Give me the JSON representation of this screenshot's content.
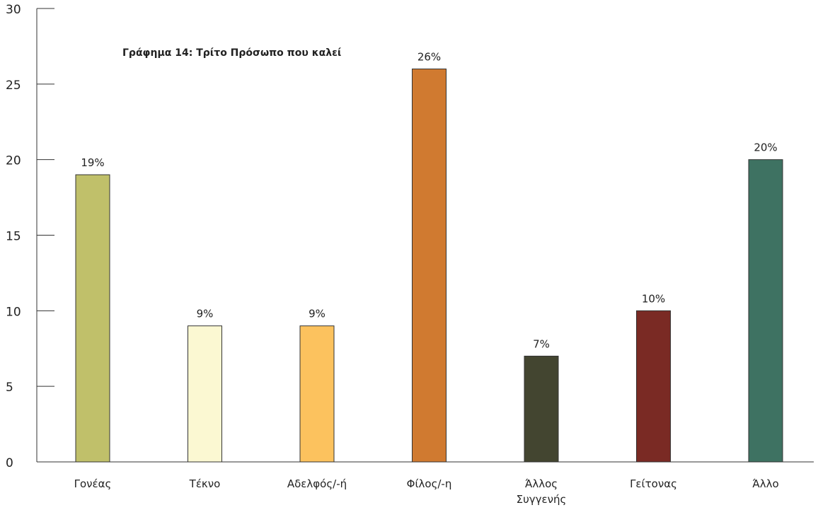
{
  "chart_data": {
    "type": "bar",
    "title": "Γράφημα 14: Τρίτο Πρόσωπο που καλεί",
    "categories": [
      "Γονέας",
      "Τέκνο",
      "Αδελφός/-ή",
      "Φίλος/-η",
      "Άλλος\nΣυγγενής",
      "Γείτονας",
      "Άλλο"
    ],
    "values": [
      19,
      9,
      9,
      26,
      7,
      10,
      20
    ],
    "data_labels": [
      "19%",
      "9%",
      "9%",
      "26%",
      "7%",
      "10%",
      "20%"
    ],
    "colors": [
      "#c0c06a",
      "#fbf8d2",
      "#fcc25e",
      "#d07a30",
      "#434530",
      "#7a2a24",
      "#3e7262"
    ],
    "ylim": [
      0,
      30
    ],
    "yticks": [
      0,
      5,
      10,
      15,
      20,
      25,
      30
    ],
    "xlabel": "",
    "ylabel": "",
    "grid": false,
    "legend": "none"
  }
}
